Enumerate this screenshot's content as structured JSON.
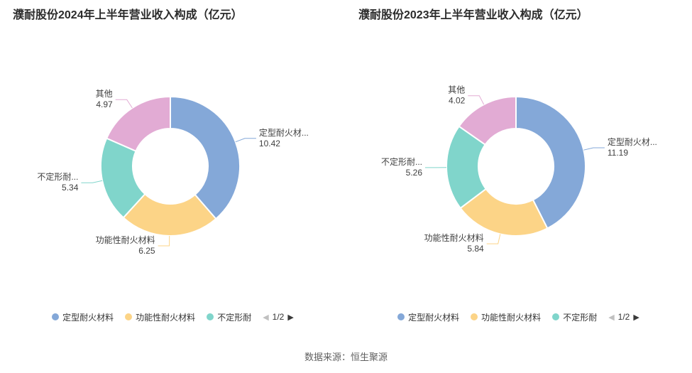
{
  "footer": {
    "source": "数据来源：恒生聚源"
  },
  "chart_data": [
    {
      "type": "pie",
      "donut": true,
      "title": "濮耐股份2024年上半年营业收入构成（亿元）",
      "unit": "亿元",
      "slices": [
        {
          "label": "定型耐火材...",
          "value": 10.42,
          "color": "#84a8d8"
        },
        {
          "label": "功能性耐火材料",
          "value": 6.25,
          "color": "#fcd487"
        },
        {
          "label": "不定形耐...",
          "value": 5.34,
          "color": "#80d5cb"
        },
        {
          "label": "其他",
          "value": 4.97,
          "color": "#e2abd4"
        }
      ],
      "legend": {
        "items": [
          {
            "label": "定型耐火材料",
            "color": "#84a8d8"
          },
          {
            "label": "功能性耐火材料",
            "color": "#fcd487"
          },
          {
            "label": "不定形耐",
            "color": "#80d5cb"
          }
        ],
        "page": "1/2",
        "prev_icon": "◀",
        "next_icon": "▶"
      }
    },
    {
      "type": "pie",
      "donut": true,
      "title": "濮耐股份2023年上半年营业收入构成（亿元）",
      "unit": "亿元",
      "slices": [
        {
          "label": "定型耐火材...",
          "value": 11.19,
          "color": "#84a8d8"
        },
        {
          "label": "功能性耐火材料",
          "value": 5.84,
          "color": "#fcd487"
        },
        {
          "label": "不定形耐...",
          "value": 5.26,
          "color": "#80d5cb"
        },
        {
          "label": "其他",
          "value": 4.02,
          "color": "#e2abd4"
        }
      ],
      "legend": {
        "items": [
          {
            "label": "定型耐火材料",
            "color": "#84a8d8"
          },
          {
            "label": "功能性耐火材料",
            "color": "#fcd487"
          },
          {
            "label": "不定形耐",
            "color": "#80d5cb"
          }
        ],
        "page": "1/2",
        "prev_icon": "◀",
        "next_icon": "▶"
      }
    }
  ]
}
